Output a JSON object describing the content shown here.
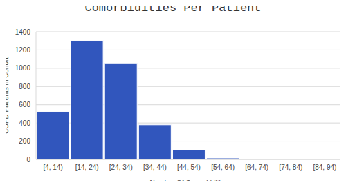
{
  "chart_data": {
    "type": "bar",
    "title": "Comorbidities Per Patient",
    "x_label": "Number Of Comorbidities",
    "y_label": "COPD Patients in Cohort",
    "categories": [
      "[4, 14)",
      "[14, 24)",
      "[24, 34)",
      "[34, 44)",
      "[44, 54)",
      "[54, 64)",
      "[64, 74)",
      "[74, 84)",
      "[84, 94)"
    ],
    "values": [
      525,
      1305,
      1050,
      380,
      105,
      15,
      1,
      0,
      0
    ],
    "color": "#3156bd",
    "ylim": [
      0,
      1400
    ],
    "yticks": [
      0,
      200,
      400,
      600,
      800,
      1000,
      1200,
      1400
    ],
    "grid": true
  }
}
